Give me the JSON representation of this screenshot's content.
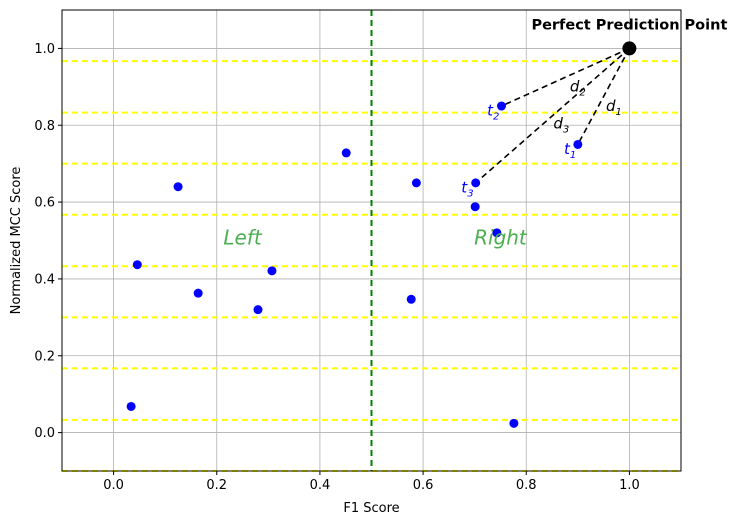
{
  "chart_data": {
    "type": "scatter",
    "xlabel": "F1 Score",
    "ylabel": "Normalized MCC Score",
    "xlim": [
      -0.1,
      1.1
    ],
    "ylim": [
      -0.1,
      1.1
    ],
    "xticks": [
      0.0,
      0.2,
      0.4,
      0.6,
      0.8,
      1.0
    ],
    "xtick_labels": [
      "0.0",
      "0.2",
      "0.4",
      "0.6",
      "0.8",
      "1.0"
    ],
    "yticks": [
      0.0,
      0.2,
      0.4,
      0.6,
      0.8,
      1.0
    ],
    "ytick_labels": [
      "0.0",
      "0.2",
      "0.4",
      "0.6",
      "0.8",
      "1.0"
    ],
    "grid": true,
    "points": [
      {
        "x": 0.034,
        "y": 0.068
      },
      {
        "x": 0.046,
        "y": 0.437
      },
      {
        "x": 0.125,
        "y": 0.64
      },
      {
        "x": 0.164,
        "y": 0.363
      },
      {
        "x": 0.28,
        "y": 0.32
      },
      {
        "x": 0.307,
        "y": 0.421
      },
      {
        "x": 0.451,
        "y": 0.728
      },
      {
        "x": 0.577,
        "y": 0.347
      },
      {
        "x": 0.587,
        "y": 0.65
      },
      {
        "x": 0.701,
        "y": 0.588
      },
      {
        "x": 0.743,
        "y": 0.52
      },
      {
        "x": 0.776,
        "y": 0.024
      },
      {
        "x": 0.752,
        "y": 0.85,
        "label": "t2"
      },
      {
        "x": 0.9,
        "y": 0.75,
        "label": "t1"
      },
      {
        "x": 0.702,
        "y": 0.65,
        "label": "t3"
      }
    ],
    "point_color": "#0000ff",
    "perfect_point": {
      "x": 1.0,
      "y": 1.0,
      "label": "Perfect Prediction Point",
      "color": "#000000"
    },
    "distance_lines": [
      {
        "from": [
          1.0,
          1.0
        ],
        "to": [
          0.9,
          0.75
        ],
        "label": "d1"
      },
      {
        "from": [
          1.0,
          1.0
        ],
        "to": [
          0.752,
          0.85
        ],
        "label": "d2"
      },
      {
        "from": [
          1.0,
          1.0
        ],
        "to": [
          0.702,
          0.65
        ],
        "label": "d3"
      }
    ],
    "vertical_line": {
      "x": 0.5,
      "color": "#008000",
      "style": "dashed"
    },
    "horizontal_lines": {
      "y": [
        -0.1,
        0.033,
        0.167,
        0.3,
        0.433,
        0.567,
        0.7,
        0.833,
        0.967
      ],
      "color": "#ffff00",
      "style": "dashed"
    },
    "region_labels": [
      {
        "text": "Left",
        "x": 0.25,
        "y": 0.49,
        "color": "#4caf50"
      },
      {
        "text": "Right",
        "x": 0.75,
        "y": 0.49,
        "color": "#4caf50"
      }
    ],
    "point_labels": [
      {
        "main": "t",
        "sub": "1",
        "x": 0.885,
        "y": 0.725,
        "color": "#0000ff"
      },
      {
        "main": "t",
        "sub": "2",
        "x": 0.736,
        "y": 0.825,
        "color": "#0000ff"
      },
      {
        "main": "t",
        "sub": "3",
        "x": 0.686,
        "y": 0.625,
        "color": "#0000ff"
      },
      {
        "main": "d",
        "sub": "1",
        "x": 0.97,
        "y": 0.837,
        "color": "#000000"
      },
      {
        "main": "d",
        "sub": "2",
        "x": 0.9,
        "y": 0.888,
        "color": "#000000"
      },
      {
        "main": "d",
        "sub": "3",
        "x": 0.868,
        "y": 0.792,
        "color": "#000000"
      }
    ]
  }
}
